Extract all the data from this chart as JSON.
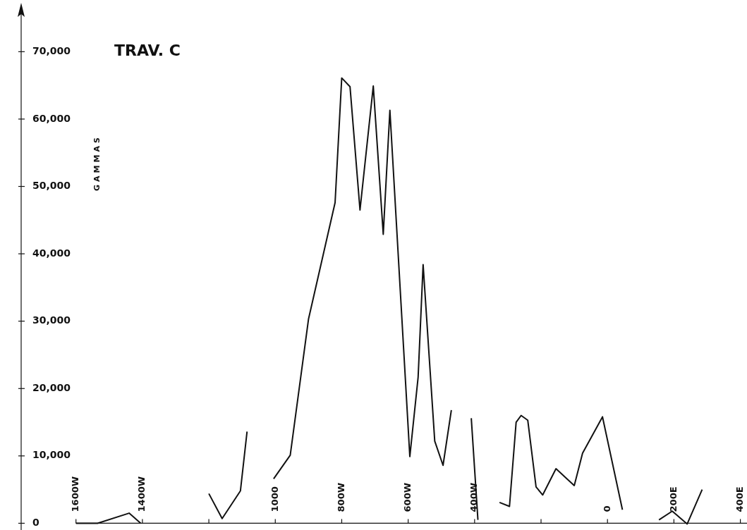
{
  "chart_data": {
    "type": "line",
    "title": "TRAV. C",
    "ylabel": "GAMMAS",
    "x": [
      -1600,
      -1535,
      -1440,
      -1405,
      -1375,
      -1265,
      -1200,
      -1160,
      -1105,
      -1085,
      -1030,
      -1005,
      -955,
      -900,
      -820,
      -800,
      -775,
      -745,
      -705,
      -675,
      -655,
      -595,
      -570,
      -555,
      -520,
      -495,
      -470,
      -455,
      -415,
      -410,
      -390,
      -380,
      -360,
      -325,
      -295,
      -275,
      -260,
      -240,
      -215,
      -195,
      -155,
      -100,
      -75,
      -15,
      45,
      80,
      130,
      155,
      195,
      240,
      285
    ],
    "series": [
      {
        "color": "#111111",
        "values": [
          0,
          0,
          1500,
          0,
          null,
          null,
          4400,
          700,
          4800,
          13600,
          null,
          6600,
          10100,
          30300,
          47600,
          66100,
          64800,
          46500,
          64900,
          42900,
          61300,
          9900,
          21700,
          38400,
          12200,
          8600,
          16800,
          null,
          null,
          15600,
          500,
          null,
          null,
          3100,
          2500,
          15000,
          16000,
          15300,
          5400,
          4200,
          8100,
          5600,
          10400,
          15800,
          2000,
          null,
          null,
          500,
          1800,
          -100,
          5000
        ]
      }
    ],
    "xlim": [
      -1765,
      420
    ],
    "ylim": [
      -1000,
      76000
    ],
    "xticks": [
      {
        "value": -1600,
        "label": "1600W"
      },
      {
        "value": -1400,
        "label": "1400W"
      },
      {
        "value": -1200,
        "label": null
      },
      {
        "value": -1000,
        "label": "1000"
      },
      {
        "value": -800,
        "label": "800W"
      },
      {
        "value": -600,
        "label": "600W"
      },
      {
        "value": -400,
        "label": "400W"
      },
      {
        "value": -200,
        "label": null
      },
      {
        "value": 0,
        "label": "0"
      },
      {
        "value": 200,
        "label": "200E"
      },
      {
        "value": 400,
        "label": "400E"
      }
    ],
    "yticks": [
      {
        "value": 0,
        "label": "0"
      },
      {
        "value": 10000,
        "label": "10,000"
      },
      {
        "value": 20000,
        "label": "20,000"
      },
      {
        "value": 30000,
        "label": "30,000"
      },
      {
        "value": 40000,
        "label": "40,000"
      },
      {
        "value": 50000,
        "label": "50,000"
      },
      {
        "value": 60000,
        "label": "60,000"
      },
      {
        "value": 70000,
        "label": "70,000"
      }
    ],
    "grid": false,
    "legend": false,
    "marker": "none",
    "line_style": "solid"
  }
}
